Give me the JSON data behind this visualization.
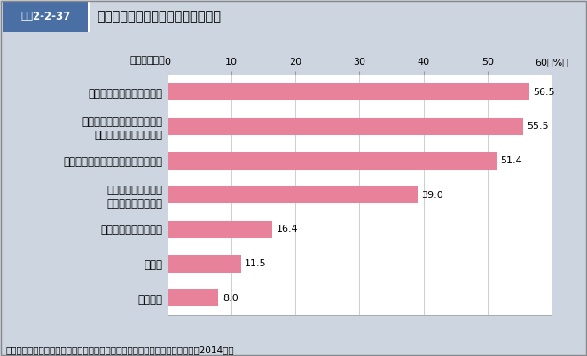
{
  "title": "健康のために今後気をつけたいこと",
  "title_tag": "図表2-2-37",
  "xlabel_note": "（複数回答）",
  "categories": [
    "特にない",
    "その他",
    "酒・タバコを控えたい",
    "定期的に健康診断を\n受けるようにしたい",
    "運動やスポーツをするようにしたい",
    "過労に注意し、睡眠・休養を\n十分とるよう心がけたい",
    "食事・栄養に気を配りたい"
  ],
  "values": [
    8.0,
    11.5,
    16.4,
    39.0,
    51.4,
    55.5,
    56.5
  ],
  "bar_color": "#e8829a",
  "background_color": "#cdd5e0",
  "plot_bg_color": "#ffffff",
  "tag_bg_color": "#4a6fa5",
  "xlim": [
    0,
    60
  ],
  "xticks": [
    0,
    10,
    20,
    30,
    40,
    50,
    60
  ],
  "footer": "資料：厚生労働省政策統括官付政策評価官室委託「健康意識に関する調査」（2014年）",
  "value_fontsize": 8.0,
  "label_fontsize": 8.5,
  "tick_fontsize": 8.0,
  "title_fontsize": 10.5,
  "tag_fontsize": 8.5,
  "footer_fontsize": 7.5
}
